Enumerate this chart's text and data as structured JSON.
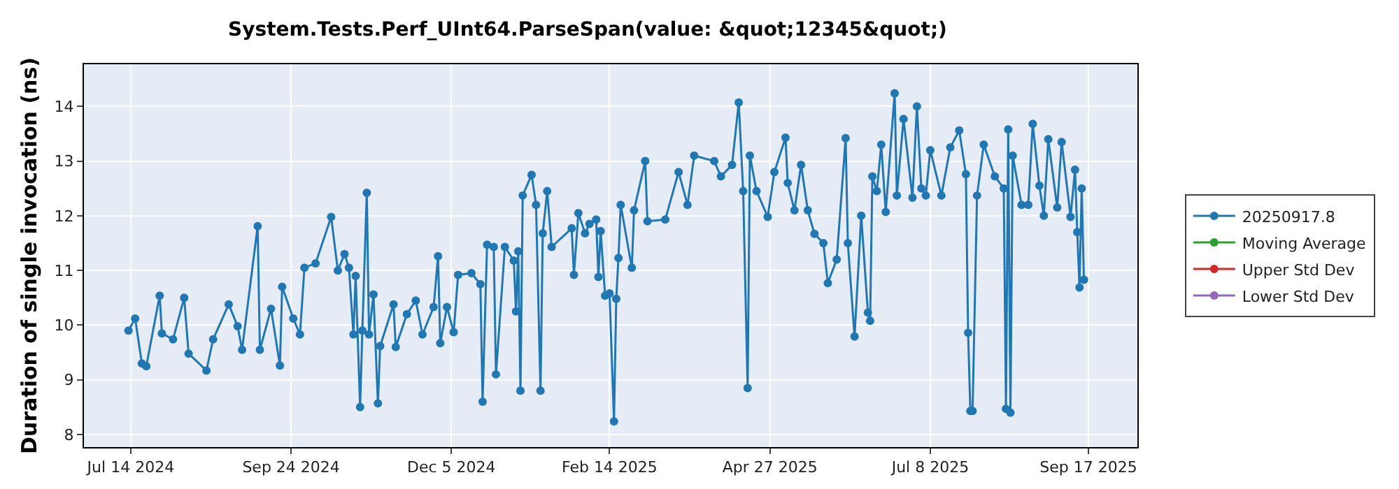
{
  "chart_data": {
    "type": "line",
    "title": "System.Tests.Perf_UInt64.ParseSpan(value: &quot;12345&quot;)",
    "ylabel": "Duration of single invocation (ns)",
    "x": [
      "2024-07-13",
      "2024-07-16",
      "2024-07-19",
      "2024-07-21",
      "2024-07-27",
      "2024-07-28",
      "2024-08-02",
      "2024-08-07",
      "2024-08-09",
      "2024-08-17",
      "2024-08-20",
      "2024-08-27",
      "2024-08-31",
      "2024-09-02",
      "2024-09-09",
      "2024-09-10",
      "2024-09-15",
      "2024-09-19",
      "2024-09-20",
      "2024-09-25",
      "2024-09-28",
      "2024-09-30",
      "2024-10-05",
      "2024-10-12",
      "2024-10-15",
      "2024-10-18",
      "2024-10-20",
      "2024-10-22",
      "2024-10-23",
      "2024-10-25",
      "2024-10-26",
      "2024-10-28",
      "2024-10-29",
      "2024-10-31",
      "2024-11-02",
      "2024-11-03",
      "2024-11-09",
      "2024-11-10",
      "2024-11-15",
      "2024-11-19",
      "2024-11-22",
      "2024-11-27",
      "2024-11-29",
      "2024-11-30",
      "2024-12-03",
      "2024-12-06",
      "2024-12-08",
      "2024-12-14",
      "2024-12-18",
      "2024-12-19",
      "2024-12-21",
      "2024-12-24",
      "2024-12-25",
      "2024-12-29",
      "2025-01-02",
      "2025-01-03",
      "2025-01-04",
      "2025-01-05",
      "2025-01-06",
      "2025-01-10",
      "2025-01-12",
      "2025-01-14",
      "2025-01-15",
      "2025-01-17",
      "2025-01-19",
      "2025-01-28",
      "2025-01-29",
      "2025-01-31",
      "2025-02-03",
      "2025-02-05",
      "2025-02-08",
      "2025-02-09",
      "2025-02-10",
      "2025-02-12",
      "2025-02-14",
      "2025-02-16",
      "2025-02-17",
      "2025-02-18",
      "2025-02-19",
      "2025-02-24",
      "2025-02-25",
      "2025-03-02",
      "2025-03-03",
      "2025-03-11",
      "2025-03-17",
      "2025-03-21",
      "2025-03-24",
      "2025-04-02",
      "2025-04-05",
      "2025-04-10",
      "2025-04-13",
      "2025-04-15",
      "2025-04-17",
      "2025-04-18",
      "2025-04-21",
      "2025-04-26",
      "2025-04-29",
      "2025-05-04",
      "2025-05-05",
      "2025-05-08",
      "2025-05-11",
      "2025-05-14",
      "2025-05-17",
      "2025-05-21",
      "2025-05-23",
      "2025-05-27",
      "2025-05-31",
      "2025-06-01",
      "2025-06-04",
      "2025-06-07",
      "2025-06-10",
      "2025-06-11",
      "2025-06-12",
      "2025-06-14",
      "2025-06-16",
      "2025-06-18",
      "2025-06-22",
      "2025-06-23",
      "2025-06-26",
      "2025-06-30",
      "2025-07-02",
      "2025-07-04",
      "2025-07-06",
      "2025-07-08",
      "2025-07-13",
      "2025-07-17",
      "2025-07-21",
      "2025-07-24",
      "2025-07-25",
      "2025-07-26",
      "2025-07-27",
      "2025-07-29",
      "2025-08-01",
      "2025-08-06",
      "2025-08-10",
      "2025-08-11",
      "2025-08-12",
      "2025-08-13",
      "2025-08-14",
      "2025-08-18",
      "2025-08-21",
      "2025-08-23",
      "2025-08-26",
      "2025-08-28",
      "2025-08-30",
      "2025-09-03",
      "2025-09-05",
      "2025-09-09",
      "2025-09-11",
      "2025-09-12",
      "2025-09-13",
      "2025-09-14",
      "2025-09-15"
    ],
    "series": [
      {
        "name": "20250917.8",
        "color": "#1f77b4",
        "values": [
          9.9,
          10.12,
          9.3,
          9.25,
          10.54,
          9.85,
          9.74,
          10.5,
          9.48,
          9.17,
          9.74,
          10.38,
          9.98,
          9.55,
          11.81,
          9.55,
          10.3,
          9.26,
          10.7,
          10.12,
          9.83,
          11.05,
          11.13,
          11.98,
          11.0,
          11.3,
          11.05,
          9.83,
          10.9,
          8.5,
          9.9,
          12.42,
          9.83,
          10.56,
          8.57,
          9.62,
          10.38,
          9.6,
          10.2,
          10.45,
          9.83,
          10.33,
          11.26,
          9.67,
          10.33,
          9.87,
          10.92,
          10.95,
          10.75,
          8.6,
          11.47,
          11.43,
          9.1,
          11.43,
          11.18,
          10.25,
          11.35,
          8.8,
          12.37,
          12.75,
          12.2,
          8.8,
          11.68,
          12.45,
          11.43,
          11.77,
          10.92,
          12.05,
          11.68,
          11.85,
          11.93,
          10.88,
          11.72,
          10.54,
          10.58,
          8.24,
          10.48,
          11.23,
          12.2,
          11.05,
          12.1,
          13.0,
          11.9,
          11.93,
          12.8,
          12.2,
          13.1,
          13.0,
          12.72,
          12.93,
          14.07,
          12.45,
          8.85,
          13.1,
          12.45,
          11.98,
          12.8,
          13.43,
          12.6,
          12.1,
          12.93,
          12.1,
          11.67,
          11.5,
          10.77,
          11.2,
          13.42,
          11.5,
          9.79,
          12.0,
          10.23,
          10.08,
          12.72,
          12.45,
          13.3,
          12.07,
          14.24,
          12.37,
          13.77,
          12.33,
          14.0,
          12.5,
          12.37,
          13.2,
          12.37,
          13.25,
          13.56,
          12.76,
          9.86,
          8.43,
          8.43,
          12.37,
          13.3,
          12.72,
          12.5,
          8.47,
          13.58,
          8.4,
          13.1,
          12.2,
          12.2,
          13.68,
          12.55,
          12.0,
          13.4,
          12.15,
          13.35,
          11.98,
          12.84,
          11.7,
          10.69,
          12.5,
          10.83
        ]
      },
      {
        "name": "Moving Average",
        "color": "#2ca02c",
        "values": [
          null,
          null,
          null,
          null,
          null,
          null,
          null,
          null,
          null,
          null,
          null,
          null,
          null,
          null,
          null,
          null,
          null,
          null,
          null,
          null,
          null,
          null,
          null,
          null,
          null,
          null,
          null,
          null,
          null,
          null,
          null,
          null,
          null,
          null,
          null,
          null,
          null,
          null,
          null,
          null,
          null,
          null,
          null,
          null,
          null,
          null,
          null,
          null,
          null,
          null,
          null,
          null,
          null,
          null,
          null,
          null,
          null,
          null,
          null,
          null,
          null,
          null,
          null,
          null,
          null,
          null,
          null,
          null,
          null,
          null,
          null,
          null,
          null,
          null,
          null,
          null,
          null,
          null,
          null,
          null,
          null,
          null,
          null,
          null,
          null,
          null,
          null,
          null,
          null,
          null,
          null,
          null,
          null,
          null,
          null,
          null,
          null,
          null,
          null,
          null,
          null,
          null,
          null,
          null,
          null,
          null,
          null,
          null,
          null,
          null,
          null,
          null,
          null,
          null,
          null,
          null,
          null,
          null,
          null,
          null,
          null,
          null,
          null,
          null,
          null,
          null,
          null,
          null,
          null,
          null,
          null,
          null,
          null,
          null,
          null,
          null,
          null,
          null,
          null,
          null,
          null,
          null,
          null,
          null,
          null,
          null,
          null,
          null,
          null,
          null,
          null,
          null,
          null
        ]
      },
      {
        "name": "Upper Std Dev",
        "color": "#d62728",
        "values": [
          null,
          null,
          null,
          null,
          null,
          null,
          null,
          null,
          null,
          null,
          null,
          null,
          null,
          null,
          null,
          null,
          null,
          null,
          null,
          null,
          null,
          null,
          null,
          null,
          null,
          null,
          null,
          null,
          null,
          null,
          null,
          null,
          null,
          null,
          null,
          null,
          null,
          null,
          null,
          null,
          null,
          null,
          null,
          null,
          null,
          null,
          null,
          null,
          null,
          null,
          null,
          null,
          null,
          null,
          null,
          null,
          null,
          null,
          null,
          null,
          null,
          null,
          null,
          null,
          null,
          null,
          null,
          null,
          null,
          null,
          null,
          null,
          null,
          null,
          null,
          null,
          null,
          null,
          null,
          null,
          null,
          null,
          null,
          null,
          null,
          null,
          null,
          null,
          null,
          null,
          null,
          null,
          null,
          null,
          null,
          null,
          null,
          null,
          null,
          null,
          null,
          null,
          null,
          null,
          null,
          null,
          null,
          null,
          null,
          null,
          null,
          null,
          null,
          null,
          null,
          null,
          null,
          null,
          null,
          null,
          null,
          null,
          null,
          null,
          null,
          null,
          null,
          null,
          null,
          null,
          null,
          null,
          null,
          null,
          null,
          null,
          null,
          null,
          null,
          null,
          null,
          null,
          null,
          null,
          null,
          null,
          null,
          null,
          null,
          null,
          null,
          null,
          null
        ]
      },
      {
        "name": "Lower Std Dev",
        "color": "#9467bd",
        "values": [
          null,
          null,
          null,
          null,
          null,
          null,
          null,
          null,
          null,
          null,
          null,
          null,
          null,
          null,
          null,
          null,
          null,
          null,
          null,
          null,
          null,
          null,
          null,
          null,
          null,
          null,
          null,
          null,
          null,
          null,
          null,
          null,
          null,
          null,
          null,
          null,
          null,
          null,
          null,
          null,
          null,
          null,
          null,
          null,
          null,
          null,
          null,
          null,
          null,
          null,
          null,
          null,
          null,
          null,
          null,
          null,
          null,
          null,
          null,
          null,
          null,
          null,
          null,
          null,
          null,
          null,
          null,
          null,
          null,
          null,
          null,
          null,
          null,
          null,
          null,
          null,
          null,
          null,
          null,
          null,
          null,
          null,
          null,
          null,
          null,
          null,
          null,
          null,
          null,
          null,
          null,
          null,
          null,
          null,
          null,
          null,
          null,
          null,
          null,
          null,
          null,
          null,
          null,
          null,
          null,
          null,
          null,
          null,
          null,
          null,
          null,
          null,
          null,
          null,
          null,
          null,
          null,
          null,
          null,
          null,
          null,
          null,
          null,
          null,
          null,
          null,
          null,
          null,
          null,
          null,
          null,
          null,
          null,
          null,
          null,
          null,
          null,
          null,
          null,
          null,
          null,
          null,
          null,
          null,
          null,
          null,
          null,
          null,
          null,
          null,
          null,
          null,
          null
        ]
      }
    ],
    "xlim": [
      "2024-06-23",
      "2025-10-09"
    ],
    "xticks": [
      {
        "value": "2024-07-14",
        "label": "Jul 14 2024"
      },
      {
        "value": "2024-09-24",
        "label": "Sep 24 2024"
      },
      {
        "value": "2024-12-05",
        "label": "Dec 5 2024"
      },
      {
        "value": "2025-02-14",
        "label": "Feb 14 2025"
      },
      {
        "value": "2025-04-27",
        "label": "Apr 27 2025"
      },
      {
        "value": "2025-07-08",
        "label": "Jul 8 2025"
      },
      {
        "value": "2025-09-17",
        "label": "Sep 17 2025"
      }
    ],
    "ylim": [
      7.77,
      14.77
    ],
    "yticks": [
      8,
      9,
      10,
      11,
      12,
      13,
      14
    ],
    "grid": true,
    "legend": "right",
    "marker": "circle",
    "line_style": "solid"
  }
}
